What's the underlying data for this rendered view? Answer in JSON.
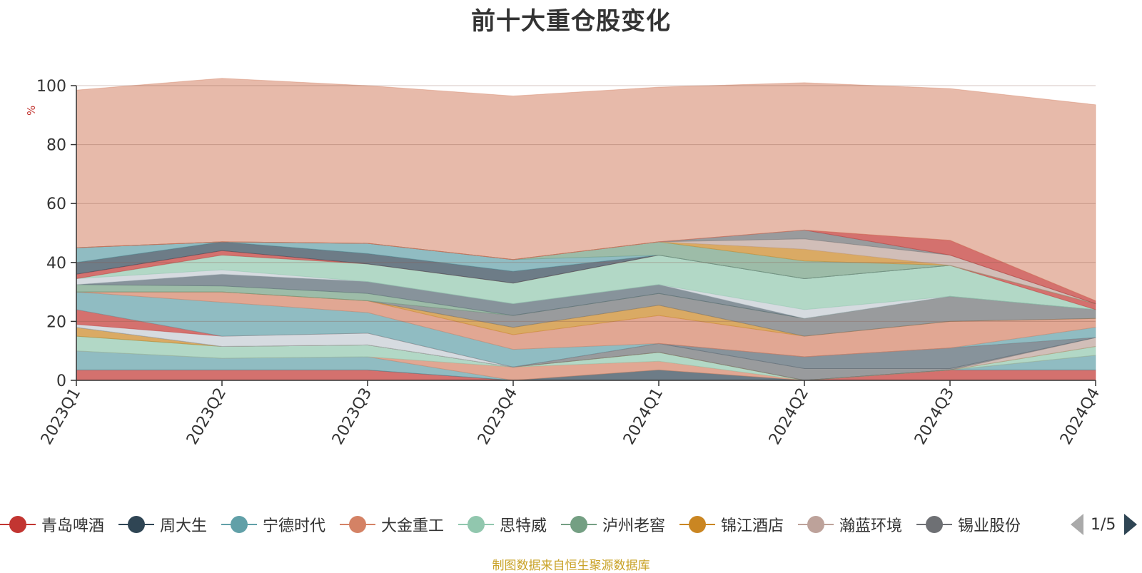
{
  "title": "前十大重仓股变化",
  "source_note": "制图数据来自恒生聚源数据库",
  "legend_page": "1/5",
  "chart_data": {
    "type": "area",
    "stacked": true,
    "title": "前十大重仓股变化",
    "ylabel": "%",
    "ylim": [
      0,
      100
    ],
    "yticks": [
      0,
      20,
      40,
      60,
      80,
      100
    ],
    "grid": true,
    "legend_position": "bottom",
    "categories": [
      "2023Q1",
      "2023Q2",
      "2023Q3",
      "2023Q4",
      "2024Q1",
      "2024Q2",
      "2024Q3",
      "2024Q4"
    ],
    "series": [
      {
        "name": "青岛啤酒",
        "color": "#c23531",
        "values": [
          3.5,
          3.5,
          3.5,
          0,
          0,
          0,
          3.5,
          3.5
        ]
      },
      {
        "name": "周大生",
        "color": "#2f4554",
        "values": [
          0,
          0,
          0,
          0,
          3.5,
          0,
          0,
          0
        ]
      },
      {
        "name": "宁德时代",
        "color": "#61a0a8",
        "values": [
          6.5,
          4,
          4.5,
          0,
          0,
          0,
          0,
          5
        ]
      },
      {
        "name": "大金重工",
        "color": "#d48265",
        "values": [
          0,
          0,
          0,
          4.5,
          3,
          0,
          0,
          0
        ]
      },
      {
        "name": "思特威",
        "color": "#91c7ae",
        "values": [
          5,
          4,
          4,
          0,
          3,
          0,
          0,
          3
        ]
      },
      {
        "name": "泸州老窖",
        "color": "#749f83",
        "values": [
          0,
          0,
          0,
          0,
          0,
          0,
          0,
          0
        ]
      },
      {
        "name": "锦江酒店",
        "color": "#ca8622",
        "values": [
          3,
          0,
          0,
          0,
          0,
          0,
          0,
          0
        ]
      },
      {
        "name": "瀚蓝环境",
        "color": "#bda29a",
        "values": [
          0,
          0,
          0,
          0,
          0,
          0,
          0,
          3
        ]
      },
      {
        "name": "锡业股份",
        "color": "#6e7074",
        "values": [
          0,
          0,
          0,
          0,
          3,
          4,
          0.5,
          0
        ]
      },
      {
        "name": "",
        "color": "#546570",
        "values": [
          0,
          0,
          0,
          0,
          0,
          4,
          7,
          0
        ]
      },
      {
        "name": "",
        "color": "#c4ccd3",
        "values": [
          1,
          3.5,
          4,
          0,
          0,
          0,
          0,
          0
        ]
      },
      {
        "name": "",
        "color": "#c23531",
        "values": [
          5,
          0,
          0,
          0,
          0,
          0,
          0,
          0
        ]
      },
      {
        "name": "",
        "color": "#61a0a8",
        "values": [
          6,
          11.5,
          7,
          6,
          0,
          0,
          0,
          3.5
        ]
      },
      {
        "name": "",
        "color": "#d48265",
        "values": [
          0,
          3.5,
          4,
          5,
          9.5,
          7,
          9,
          3
        ]
      },
      {
        "name": "",
        "color": "#ca8622",
        "values": [
          0,
          0,
          0,
          2.5,
          3.5,
          0,
          0,
          0
        ]
      },
      {
        "name": "",
        "color": "#6e7074",
        "values": [
          0,
          0,
          0,
          4,
          4,
          6,
          8.5,
          3
        ]
      },
      {
        "name": "",
        "color": "#749f83",
        "values": [
          2.5,
          2,
          2.5,
          0,
          0,
          0,
          0,
          0
        ]
      },
      {
        "name": "",
        "color": "#546570",
        "values": [
          0,
          4,
          4,
          4,
          3,
          0,
          0,
          0
        ]
      },
      {
        "name": "",
        "color": "#c4ccd3",
        "values": [
          2,
          1.5,
          0,
          0,
          0,
          3,
          0,
          0
        ]
      },
      {
        "name": "",
        "color": "#91c7ae",
        "values": [
          0,
          5,
          6,
          7,
          10,
          10.5,
          10.5,
          0
        ]
      },
      {
        "name": "",
        "color": "#c23531",
        "values": [
          1.5,
          1.5,
          0,
          0,
          0,
          0,
          0,
          2
        ]
      },
      {
        "name": "",
        "color": "#2f4554",
        "values": [
          4,
          3,
          3.5,
          4,
          0,
          0,
          0,
          0
        ]
      },
      {
        "name": "",
        "color": "#61a0a8",
        "values": [
          5,
          0,
          3.5,
          4,
          0,
          0,
          0,
          0
        ]
      },
      {
        "name": "",
        "color": "#749f83",
        "values": [
          0,
          0,
          0,
          0,
          4.5,
          6,
          0,
          0
        ]
      },
      {
        "name": "",
        "color": "#ca8622",
        "values": [
          0,
          0,
          0,
          0,
          0,
          4,
          0,
          0
        ]
      },
      {
        "name": "",
        "color": "#bda29a",
        "values": [
          0,
          0,
          0,
          0,
          0,
          3.5,
          3.5,
          0
        ]
      },
      {
        "name": "",
        "color": "#6e7074",
        "values": [
          0,
          0,
          0,
          0,
          0,
          3,
          0,
          0
        ]
      },
      {
        "name": "",
        "color": "#c23531",
        "values": [
          0,
          0,
          0,
          0,
          0,
          0,
          5,
          1
        ]
      },
      {
        "name": "",
        "color": "#d48265",
        "values": [
          53.5,
          55.5,
          53.5,
          55.5,
          52.5,
          50,
          51.5,
          66.5
        ]
      }
    ]
  }
}
